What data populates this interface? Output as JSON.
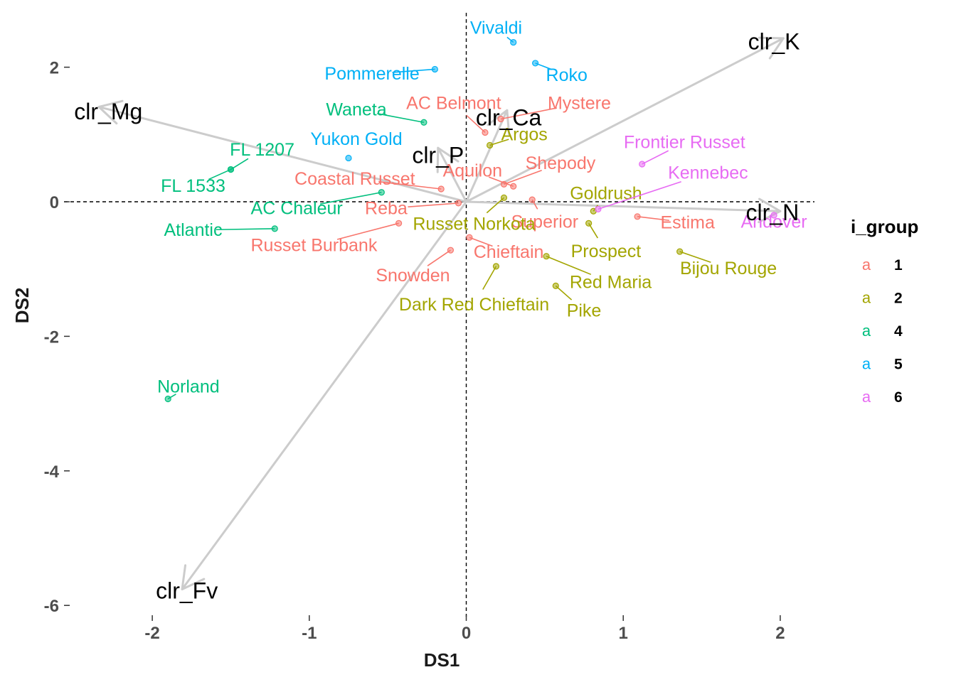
{
  "chart_data": {
    "type": "scatter",
    "title": "",
    "xlabel": "DS1",
    "ylabel": "DS2",
    "xlim": [
      -2.5,
      2.25
    ],
    "ylim": [
      -6.35,
      2.75
    ],
    "x_ticks": [
      -2,
      -1,
      0,
      1,
      2
    ],
    "y_ticks": [
      -6,
      -4,
      -2,
      0,
      2
    ],
    "grid": false,
    "reference_lines": [
      "x=0 dashed",
      "y=0 dashed"
    ],
    "legend": {
      "title": "i_group",
      "placement": "right",
      "key_glyph": "a",
      "entries": [
        {
          "label": "1",
          "color": "#F8766D"
        },
        {
          "label": "2",
          "color": "#A3A500"
        },
        {
          "label": "4",
          "color": "#00BF7D"
        },
        {
          "label": "5",
          "color": "#00B0F6"
        },
        {
          "label": "6",
          "color": "#E76BF3"
        }
      ]
    },
    "group_colors": {
      "1": "#F8766D",
      "2": "#A3A500",
      "4": "#00BF7D",
      "5": "#00B0F6",
      "6": "#E76BF3"
    },
    "vector_color": "#cccccc",
    "points": [
      {
        "name": "Vivaldi",
        "group": "5",
        "x": 0.3,
        "y": 2.37,
        "lx": 0.19,
        "ly": 2.58
      },
      {
        "name": "Pommerelle",
        "group": "5",
        "x": -0.2,
        "y": 1.97,
        "lx": -0.6,
        "ly": 1.9
      },
      {
        "name": "Roko",
        "group": "5",
        "x": 0.44,
        "y": 2.06,
        "lx": 0.64,
        "ly": 1.88
      },
      {
        "name": "Yukon Gold",
        "group": "5",
        "x": -0.75,
        "y": 0.65,
        "lx": -0.7,
        "ly": 0.93
      },
      {
        "name": "Waneta",
        "group": "4",
        "x": -0.27,
        "y": 1.18,
        "lx": -0.7,
        "ly": 1.37
      },
      {
        "name": "FL 1207",
        "group": "4",
        "x": -1.5,
        "y": 0.48,
        "lx": -1.3,
        "ly": 0.77
      },
      {
        "name": "FL 1533",
        "group": "4",
        "x": -1.5,
        "y": 0.48,
        "lx": -1.74,
        "ly": 0.23
      },
      {
        "name": "AC Chaleur",
        "group": "4",
        "x": -0.54,
        "y": 0.14,
        "lx": -1.08,
        "ly": -0.1
      },
      {
        "name": "Atlantic",
        "group": "4",
        "x": -1.22,
        "y": -0.4,
        "lx": -1.74,
        "ly": -0.42
      },
      {
        "name": "Norland",
        "group": "4",
        "x": -1.9,
        "y": -2.93,
        "lx": -1.77,
        "ly": -2.75
      },
      {
        "name": "AC Belmont",
        "group": "1",
        "x": 0.12,
        "y": 1.03,
        "lx": -0.08,
        "ly": 1.46
      },
      {
        "name": "Mystere",
        "group": "1",
        "x": 0.22,
        "y": 1.23,
        "lx": 0.72,
        "ly": 1.46
      },
      {
        "name": "Coastal Russet",
        "group": "1",
        "x": -0.16,
        "y": 0.19,
        "lx": -0.71,
        "ly": 0.34
      },
      {
        "name": "Shepody",
        "group": "1",
        "x": 0.24,
        "y": 0.26,
        "lx": 0.6,
        "ly": 0.57
      },
      {
        "name": "Aquilon",
        "group": "1",
        "x": 0.3,
        "y": 0.23,
        "lx": 0.04,
        "ly": 0.46
      },
      {
        "name": "Reba",
        "group": "1",
        "x": -0.05,
        "y": -0.02,
        "lx": -0.51,
        "ly": -0.1
      },
      {
        "name": "Superior",
        "group": "1",
        "x": 0.42,
        "y": 0.03,
        "lx": 0.5,
        "ly": -0.3
      },
      {
        "name": "Estima",
        "group": "1",
        "x": 1.09,
        "y": -0.22,
        "lx": 1.41,
        "ly": -0.31
      },
      {
        "name": "Russet Burbank",
        "group": "1",
        "x": -0.43,
        "y": -0.32,
        "lx": -0.97,
        "ly": -0.65
      },
      {
        "name": "Chieftain",
        "group": "1",
        "x": 0.02,
        "y": -0.53,
        "lx": 0.27,
        "ly": -0.75
      },
      {
        "name": "Snowden",
        "group": "1",
        "x": -0.1,
        "y": -0.72,
        "lx": -0.34,
        "ly": -1.1
      },
      {
        "name": "Argos",
        "group": "2",
        "x": 0.15,
        "y": 0.84,
        "lx": 0.37,
        "ly": 1.0
      },
      {
        "name": "Goldrush",
        "group": "2",
        "x": 0.81,
        "y": -0.14,
        "lx": 0.89,
        "ly": 0.12
      },
      {
        "name": "Russet Norkota",
        "group": "2",
        "x": 0.24,
        "y": 0.06,
        "lx": 0.05,
        "ly": -0.33
      },
      {
        "name": "Prospect",
        "group": "2",
        "x": 0.78,
        "y": -0.32,
        "lx": 0.89,
        "ly": -0.74
      },
      {
        "name": "Bijou Rouge",
        "group": "2",
        "x": 1.36,
        "y": -0.74,
        "lx": 1.67,
        "ly": -0.99
      },
      {
        "name": "Red Maria",
        "group": "2",
        "x": 0.51,
        "y": -0.81,
        "lx": 0.92,
        "ly": -1.2
      },
      {
        "name": "Pike",
        "group": "2",
        "x": 0.57,
        "y": -1.25,
        "lx": 0.75,
        "ly": -1.62
      },
      {
        "name": "Dark Red Chieftain",
        "group": "2",
        "x": 0.19,
        "y": -0.96,
        "lx": 0.05,
        "ly": -1.53
      },
      {
        "name": "Frontier Russet",
        "group": "6",
        "x": 1.12,
        "y": 0.56,
        "lx": 1.39,
        "ly": 0.88
      },
      {
        "name": "Kennebec",
        "group": "6",
        "x": 0.84,
        "y": -0.11,
        "lx": 1.54,
        "ly": 0.43
      },
      {
        "name": "Andover",
        "group": "6",
        "x": 1.96,
        "y": -0.2,
        "lx": 1.96,
        "ly": -0.3
      }
    ],
    "vectors": [
      {
        "name": "clr_K",
        "x": 2.02,
        "y": 2.43,
        "lx": 1.96,
        "ly": 2.38
      },
      {
        "name": "clr_Mg",
        "x": -2.34,
        "y": 1.41,
        "lx": -2.28,
        "ly": 1.34
      },
      {
        "name": "clr_Ca",
        "x": 0.26,
        "y": 1.36,
        "lx": 0.27,
        "ly": 1.25
      },
      {
        "name": "clr_P",
        "x": -0.18,
        "y": 0.8,
        "lx": -0.18,
        "ly": 0.69
      },
      {
        "name": "clr_N",
        "x": 2.0,
        "y": -0.14,
        "lx": 1.95,
        "ly": -0.16
      },
      {
        "name": "clr_Fv",
        "x": -1.81,
        "y": -5.76,
        "lx": -1.78,
        "ly": -5.78
      }
    ]
  }
}
